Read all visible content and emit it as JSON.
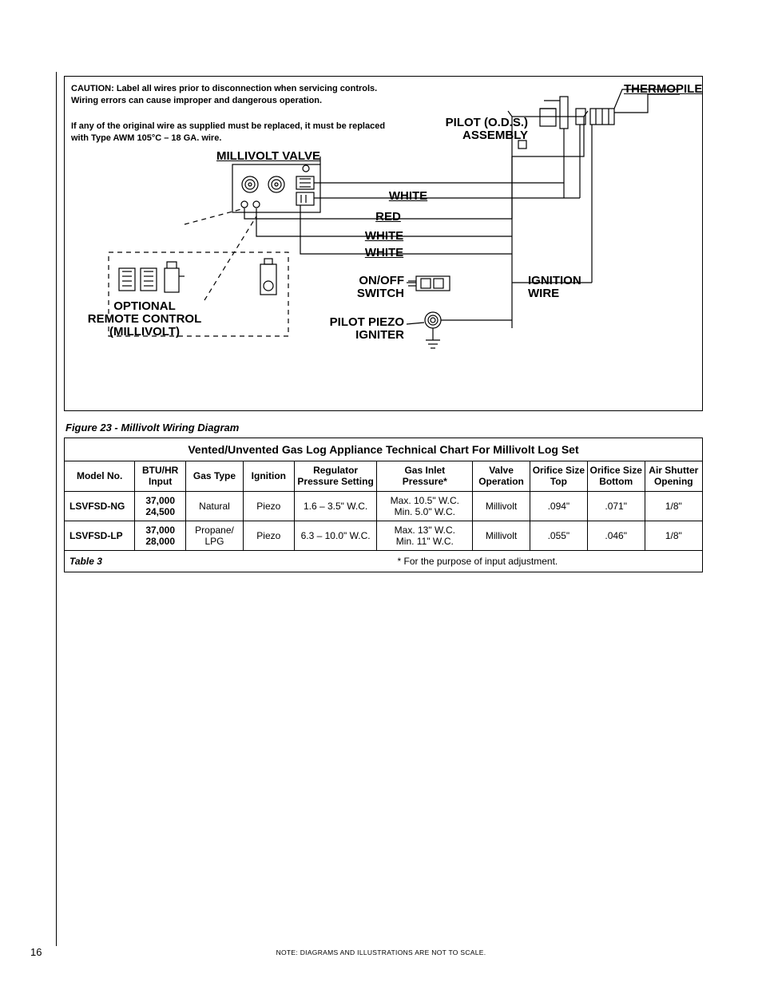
{
  "caution": {
    "line1": "CAUTION: Label all wires prior to disconnection when servicing controls.",
    "line2": "Wiring errors can cause improper and dangerous operation.",
    "line3": "If any of the original wire as supplied must be replaced, it must be replaced",
    "line4": "with Type AWM 105°C – 18 GA. wire."
  },
  "labels": {
    "thermopile": "THERMOPILE",
    "pilot_ods": "PILOT (O.D.S.)",
    "assembly": "ASSEMBLY",
    "millivolt_valve": "MILLIVOLT VALVE",
    "white": "WHITE",
    "red": "RED",
    "onoff": "ON/OFF",
    "switch": "SWITCH",
    "ignition": "IGNITION",
    "wire": "WIRE",
    "optional": "OPTIONAL",
    "remote_control": "REMOTE CONTROL",
    "millivolt": "(MILLIVOLT)",
    "pilot_piezo": "PILOT PIEZO",
    "igniter": "IGNITER"
  },
  "figure_caption": "Figure 23 - Millivolt Wiring Diagram",
  "table": {
    "title": "Vented/Unvented Gas Log Appliance Technical Chart For Millivolt Log Set",
    "headers": [
      "Model No.",
      "BTU/HR Input",
      "Gas Type",
      "Ignition",
      "Regulator Pressure Setting",
      "Gas Inlet Pressure*",
      "Valve Operation",
      "Orifice Size Top",
      "Orifice Size Bottom",
      "Air Shutter Opening"
    ],
    "col_widths": [
      "11%",
      "8%",
      "9%",
      "8%",
      "13%",
      "15%",
      "9%",
      "9%",
      "9%",
      "9%"
    ],
    "rows": [
      {
        "model": "LSVFSD-NG",
        "btu": "37,000 24,500",
        "gas": "Natural",
        "ign": "Piezo",
        "reg": "1.6 – 3.5\" W.C.",
        "inlet": "Max. 10.5\" W.C. Min. 5.0\" W.C.",
        "valve": "Millivolt",
        "otop": ".094\"",
        "obot": ".071\"",
        "air": "1/8\""
      },
      {
        "model": "LSVFSD-LP",
        "btu": "37,000 28,000",
        "gas": "Propane/ LPG",
        "ign": "Piezo",
        "reg": "6.3 – 10.0\" W.C.",
        "inlet": "Max. 13\" W.C. Min. 11\" W.C.",
        "valve": "Millivolt",
        "otop": ".055\"",
        "obot": ".046\"",
        "air": "1/8\""
      }
    ],
    "footer_label": "Table 3",
    "footer_note": "* For the purpose of input adjustment."
  },
  "page_number": "16",
  "footnote": "NOTE: DIAGRAMS AND ILLUSTRATIONS ARE NOT TO SCALE.",
  "colors": {
    "line": "#000000",
    "bg": "#ffffff"
  }
}
